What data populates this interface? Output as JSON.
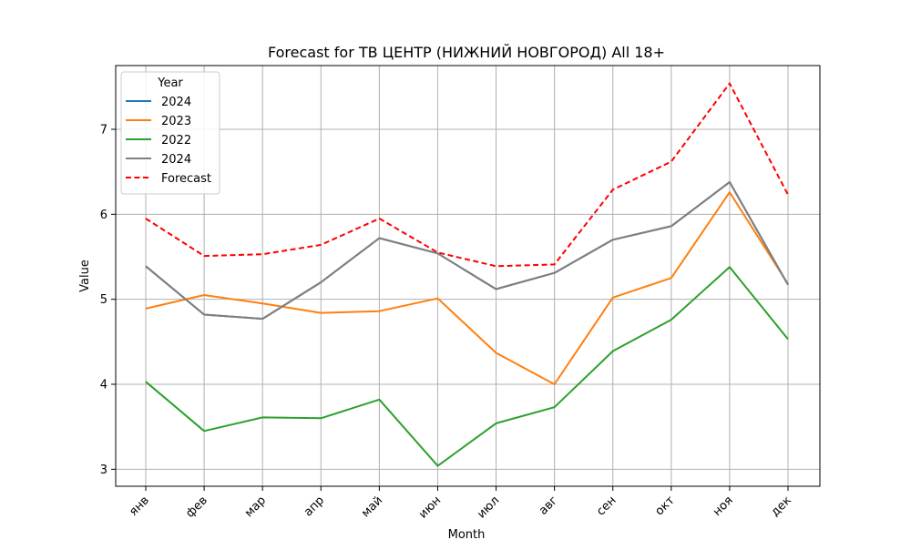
{
  "chart_data": {
    "type": "line",
    "title": "Forecast for ТВ ЦЕНТР (НИЖНИЙ НОВГОРОД) All 18+",
    "xlabel": "Month",
    "ylabel": "Value",
    "categories": [
      "янв",
      "фев",
      "мар",
      "апр",
      "май",
      "июн",
      "июл",
      "авг",
      "сен",
      "окт",
      "ноя",
      "дек"
    ],
    "ylim": [
      2.8,
      7.75
    ],
    "yticks": [
      3,
      4,
      5,
      6,
      7
    ],
    "grid": true,
    "legend": {
      "title": "Year",
      "placement": "upper-left"
    },
    "series": [
      {
        "name": "2024",
        "color": "#1f77b4",
        "style": "solid",
        "values": [
          5.39,
          4.82,
          4.77,
          5.2,
          5.72,
          5.54,
          5.12,
          5.31,
          5.7,
          5.86,
          6.38,
          5.17
        ]
      },
      {
        "name": "2023",
        "color": "#ff7f0e",
        "style": "solid",
        "values": [
          4.89,
          5.05,
          4.95,
          4.84,
          4.86,
          5.01,
          4.37,
          4.0,
          5.02,
          5.25,
          6.26,
          5.18
        ]
      },
      {
        "name": "2022",
        "color": "#2ca02c",
        "style": "solid",
        "values": [
          4.03,
          3.45,
          3.61,
          3.6,
          3.82,
          3.04,
          3.54,
          3.73,
          4.39,
          4.76,
          5.38,
          4.53
        ]
      },
      {
        "name": "2024",
        "color": "#7f7f7f",
        "style": "solid",
        "values": [
          5.39,
          4.82,
          4.77,
          5.2,
          5.72,
          5.54,
          5.12,
          5.31,
          5.7,
          5.86,
          6.38,
          5.17
        ]
      },
      {
        "name": "Forecast",
        "color": "#ff0000",
        "style": "dashed",
        "values": [
          5.95,
          5.51,
          5.53,
          5.64,
          5.95,
          5.55,
          5.39,
          5.41,
          6.29,
          6.62,
          7.54,
          6.23
        ]
      }
    ]
  }
}
